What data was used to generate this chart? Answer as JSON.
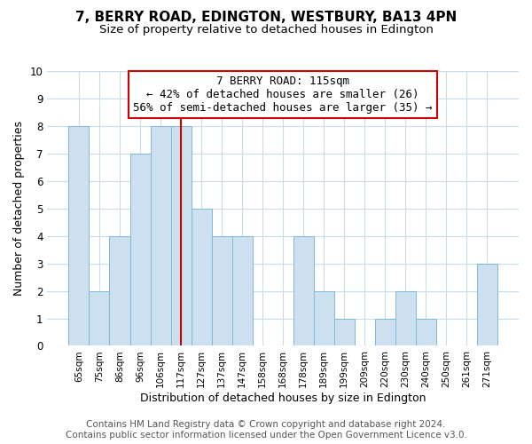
{
  "title": "7, BERRY ROAD, EDINGTON, WESTBURY, BA13 4PN",
  "subtitle": "Size of property relative to detached houses in Edington",
  "xlabel": "Distribution of detached houses by size in Edington",
  "ylabel": "Number of detached properties",
  "bar_labels": [
    "65sqm",
    "75sqm",
    "86sqm",
    "96sqm",
    "106sqm",
    "117sqm",
    "127sqm",
    "137sqm",
    "147sqm",
    "158sqm",
    "168sqm",
    "178sqm",
    "189sqm",
    "199sqm",
    "209sqm",
    "220sqm",
    "230sqm",
    "240sqm",
    "250sqm",
    "261sqm",
    "271sqm"
  ],
  "bar_values": [
    8,
    2,
    4,
    7,
    8,
    8,
    5,
    4,
    4,
    0,
    0,
    4,
    2,
    1,
    0,
    1,
    2,
    1,
    0,
    0,
    3
  ],
  "bar_color": "#cce0ef",
  "bar_edge_color": "#7fb8d8",
  "vline_x": 5,
  "vline_color": "#cc0000",
  "annotation_title": "7 BERRY ROAD: 115sqm",
  "annotation_line1": "← 42% of detached houses are smaller (26)",
  "annotation_line2": "56% of semi-detached houses are larger (35) →",
  "annotation_box_color": "#ffffff",
  "annotation_box_edge": "#cc0000",
  "ylim": [
    0,
    10
  ],
  "yticks": [
    0,
    1,
    2,
    3,
    4,
    5,
    6,
    7,
    8,
    9,
    10
  ],
  "footer_line1": "Contains HM Land Registry data © Crown copyright and database right 2024.",
  "footer_line2": "Contains public sector information licensed under the Open Government Licence v3.0.",
  "background_color": "#ffffff",
  "grid_color": "#c8dcea",
  "title_fontsize": 11,
  "subtitle_fontsize": 9.5,
  "xlabel_fontsize": 9,
  "ylabel_fontsize": 9,
  "footer_fontsize": 7.5,
  "annotation_fontsize": 9
}
